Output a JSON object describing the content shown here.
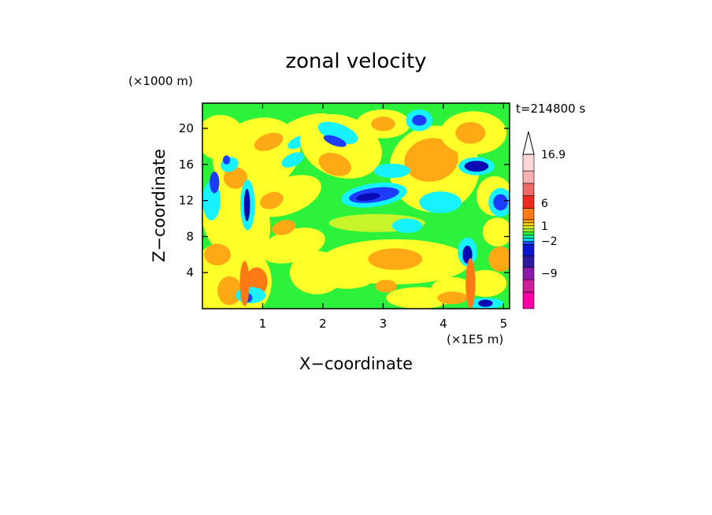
{
  "chart_data": {
    "type": "heatmap",
    "title": "zonal velocity",
    "xlabel": "X−coordinate",
    "ylabel": "Z−coordinate",
    "x_unit": "(×1E5 m)",
    "y_unit": "(×1000 m)",
    "time_label": "t=214800 s",
    "xlim": [
      0,
      5.1
    ],
    "ylim": [
      0,
      22.8
    ],
    "x_ticks": [
      1,
      2,
      3,
      4,
      5
    ],
    "y_ticks": [
      4,
      8,
      12,
      16,
      20
    ],
    "colorbar": {
      "max_label": "16.9",
      "labels": [
        {
          "text": "16.9",
          "value": 16.9
        },
        {
          "text": "6",
          "value": 6
        },
        {
          "text": "1",
          "value": 1
        },
        {
          "text": "−2",
          "value": -2
        },
        {
          "text": "−9",
          "value": -9
        }
      ],
      "bands": [
        {
          "color": "#ff00a8",
          "h": 1.6
        },
        {
          "color": "#cc1f99",
          "h": 1.2
        },
        {
          "color": "#8a1aa6",
          "h": 1.2
        },
        {
          "color": "#2c1a9e",
          "h": 1.1
        },
        {
          "color": "#0b17cf",
          "h": 1.1
        },
        {
          "color": "#1f4bff",
          "h": 0.3
        },
        {
          "color": "#00d8ff",
          "h": 0.3
        },
        {
          "color": "#00f0a0",
          "h": 0.3
        },
        {
          "color": "#2cf23c",
          "h": 0.3
        },
        {
          "color": "#8cf02c",
          "h": 0.3
        },
        {
          "color": "#d8f22c",
          "h": 0.3
        },
        {
          "color": "#ffd21a",
          "h": 0.3
        },
        {
          "color": "#ffaa14",
          "h": 0.3
        },
        {
          "color": "#ff7a14",
          "h": 1.1
        },
        {
          "color": "#ee2a1a",
          "h": 1.2
        },
        {
          "color": "#f06a6a",
          "h": 1.2
        },
        {
          "color": "#f8b0b0",
          "h": 1.2
        },
        {
          "color": "#ffd8d8",
          "h": 1.6
        }
      ]
    },
    "palette": {
      "green": "#2cf23c",
      "yellow": "#ffff2a",
      "yellow_green": "#c8f52a",
      "orange": "#ffaa14",
      "deep_orange": "#ff7a14",
      "cyan": "#16f2ff",
      "blue": "#1e3cff",
      "navy": "#0a0ab4"
    }
  }
}
